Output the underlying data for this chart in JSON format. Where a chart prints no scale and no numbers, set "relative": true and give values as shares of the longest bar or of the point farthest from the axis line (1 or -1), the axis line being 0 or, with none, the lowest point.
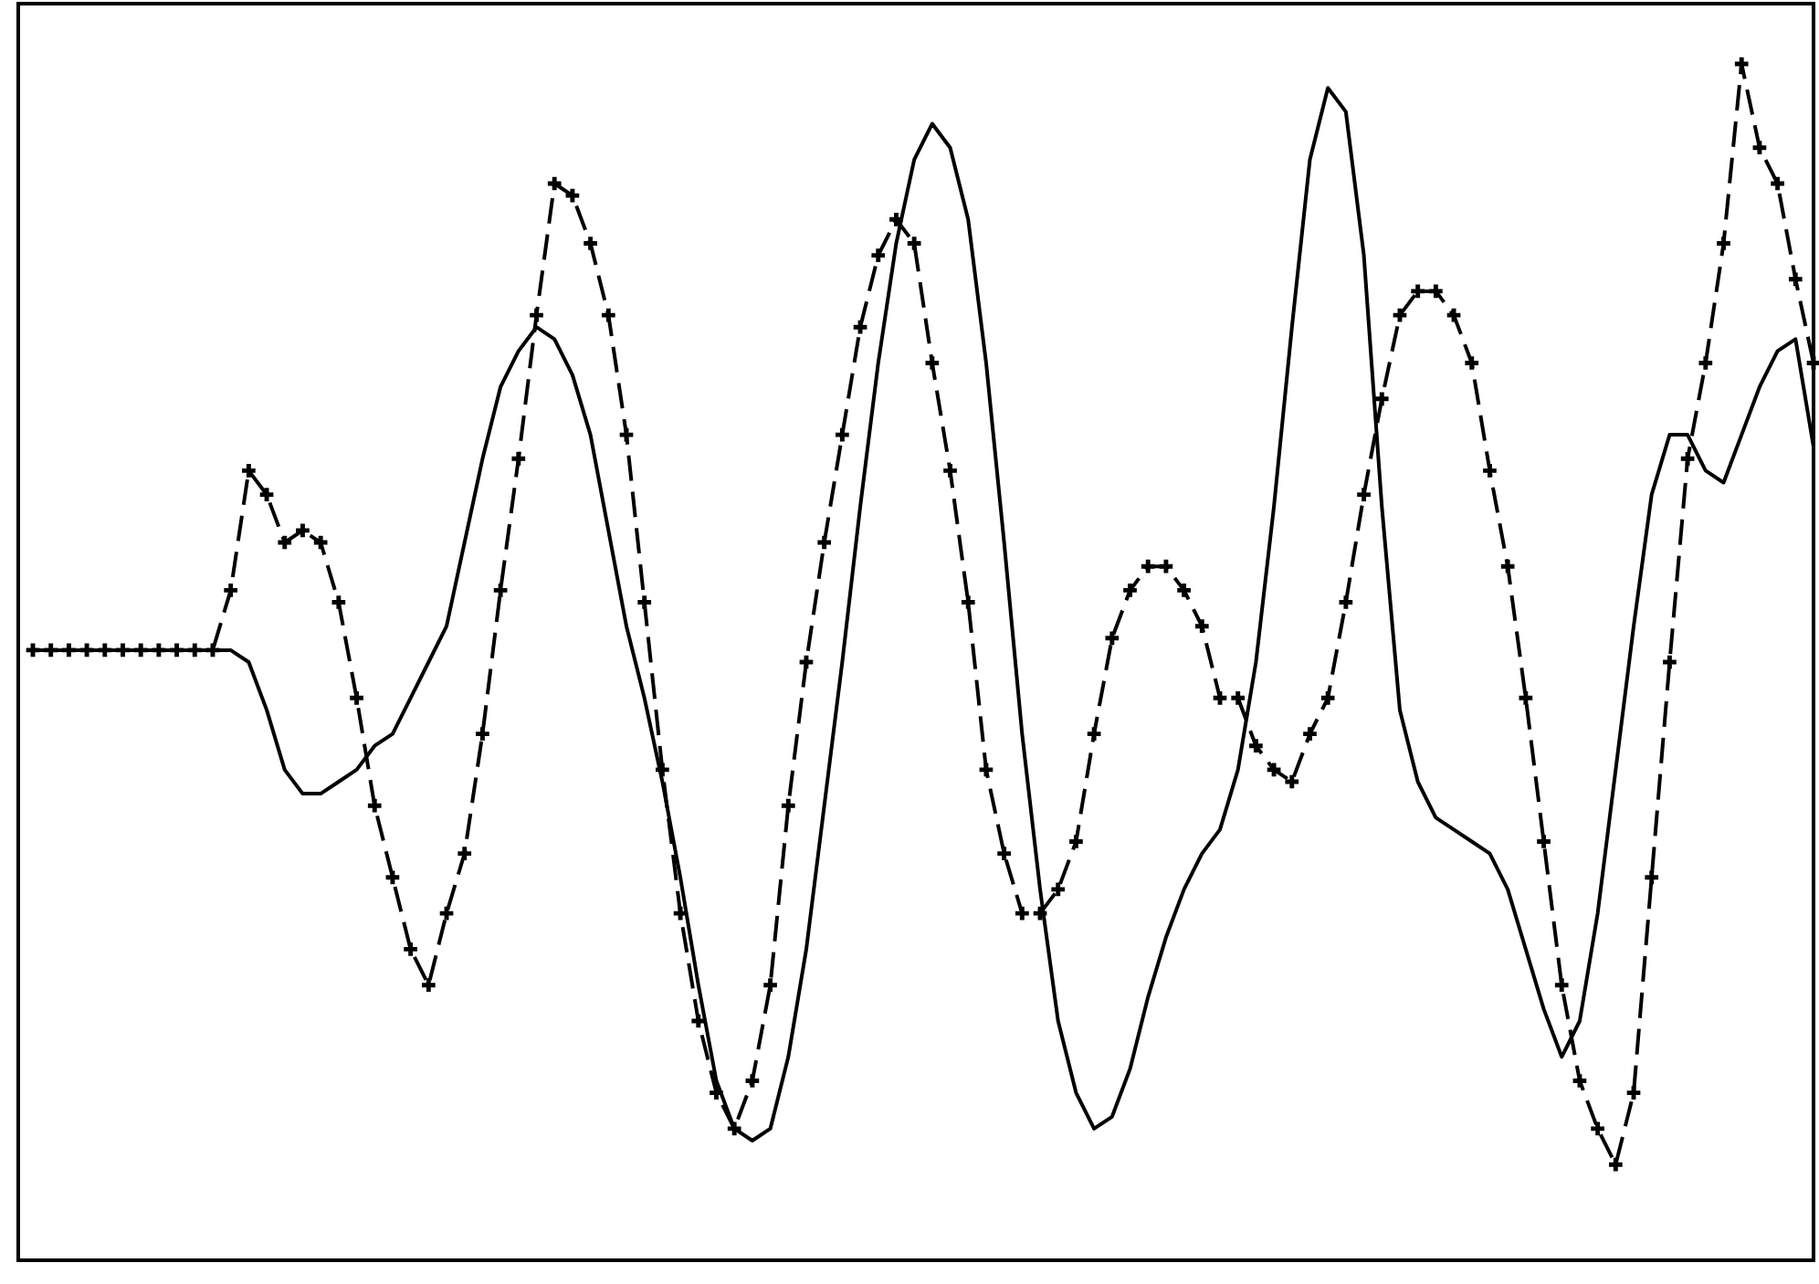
{
  "chart_data": {
    "type": "line",
    "relative": true,
    "categories": [
      null,
      null,
      null,
      null,
      null,
      null,
      null,
      null,
      null,
      null,
      null,
      null,
      null,
      null,
      null,
      null,
      null,
      null,
      null,
      null,
      null,
      null,
      null,
      null,
      null,
      null,
      null,
      null,
      null,
      null,
      null,
      null,
      null,
      null,
      null,
      null,
      null,
      null,
      null,
      null,
      null,
      null,
      null,
      null,
      null,
      null,
      null,
      null,
      null,
      null,
      null,
      null,
      null,
      null,
      null,
      null,
      null,
      null,
      null,
      null,
      null,
      null,
      null,
      null,
      null,
      null,
      null,
      null,
      null,
      null,
      null,
      null,
      null,
      null,
      null,
      null,
      null,
      null,
      null,
      null,
      null,
      null,
      null,
      null,
      null,
      null,
      null,
      null,
      null,
      null,
      null,
      null,
      null,
      null,
      null,
      null,
      null,
      null,
      null,
      null
    ],
    "series": [
      {
        "color": "#000000",
        "line_style": "solid",
        "marker": "none",
        "values": [
          0.51,
          0.51,
          0.51,
          0.51,
          0.51,
          0.51,
          0.51,
          0.51,
          0.51,
          0.51,
          0.51,
          0.51,
          0.5,
          0.46,
          0.41,
          0.39,
          0.39,
          0.4,
          0.41,
          0.43,
          0.44,
          0.47,
          0.5,
          0.53,
          0.6,
          0.67,
          0.73,
          0.76,
          0.78,
          0.77,
          0.74,
          0.69,
          0.61,
          0.53,
          0.47,
          0.4,
          0.32,
          0.23,
          0.15,
          0.11,
          0.1,
          0.11,
          0.17,
          0.26,
          0.38,
          0.5,
          0.63,
          0.75,
          0.85,
          0.92,
          0.95,
          0.93,
          0.87,
          0.75,
          0.6,
          0.44,
          0.31,
          0.2,
          0.14,
          0.11,
          0.12,
          0.16,
          0.22,
          0.27,
          0.31,
          0.34,
          0.36,
          0.41,
          0.5,
          0.63,
          0.78,
          0.92,
          0.98,
          0.96,
          0.84,
          0.63,
          0.46,
          0.4,
          0.37,
          0.36,
          0.35,
          0.34,
          0.31,
          0.26,
          0.21,
          0.17,
          0.2,
          0.29,
          0.41,
          0.53,
          0.64,
          0.69,
          0.69,
          0.66,
          0.65,
          0.69,
          0.73,
          0.76,
          0.77,
          0.68
        ]
      },
      {
        "color": "#000000",
        "line_style": "dashed",
        "marker": "cross",
        "values": [
          0.51,
          0.51,
          0.51,
          0.51,
          0.51,
          0.51,
          0.51,
          0.51,
          0.51,
          0.51,
          0.51,
          0.56,
          0.66,
          0.64,
          0.6,
          0.61,
          0.6,
          0.55,
          0.47,
          0.38,
          0.32,
          0.26,
          0.23,
          0.29,
          0.34,
          0.44,
          0.56,
          0.67,
          0.79,
          0.9,
          0.89,
          0.85,
          0.79,
          0.69,
          0.55,
          0.41,
          0.29,
          0.2,
          0.14,
          0.11,
          0.15,
          0.23,
          0.38,
          0.5,
          0.6,
          0.69,
          0.78,
          0.84,
          0.87,
          0.85,
          0.75,
          0.66,
          0.55,
          0.41,
          0.34,
          0.29,
          0.29,
          0.31,
          0.35,
          0.44,
          0.52,
          0.56,
          0.58,
          0.58,
          0.56,
          0.53,
          0.47,
          0.47,
          0.43,
          0.41,
          0.4,
          0.44,
          0.47,
          0.55,
          0.64,
          0.72,
          0.79,
          0.81,
          0.81,
          0.79,
          0.75,
          0.66,
          0.58,
          0.47,
          0.35,
          0.23,
          0.15,
          0.11,
          0.08,
          0.14,
          0.32,
          0.5,
          0.67,
          0.75,
          0.85,
          1,
          0.93,
          0.9,
          0.82,
          0.75
        ]
      }
    ]
  }
}
